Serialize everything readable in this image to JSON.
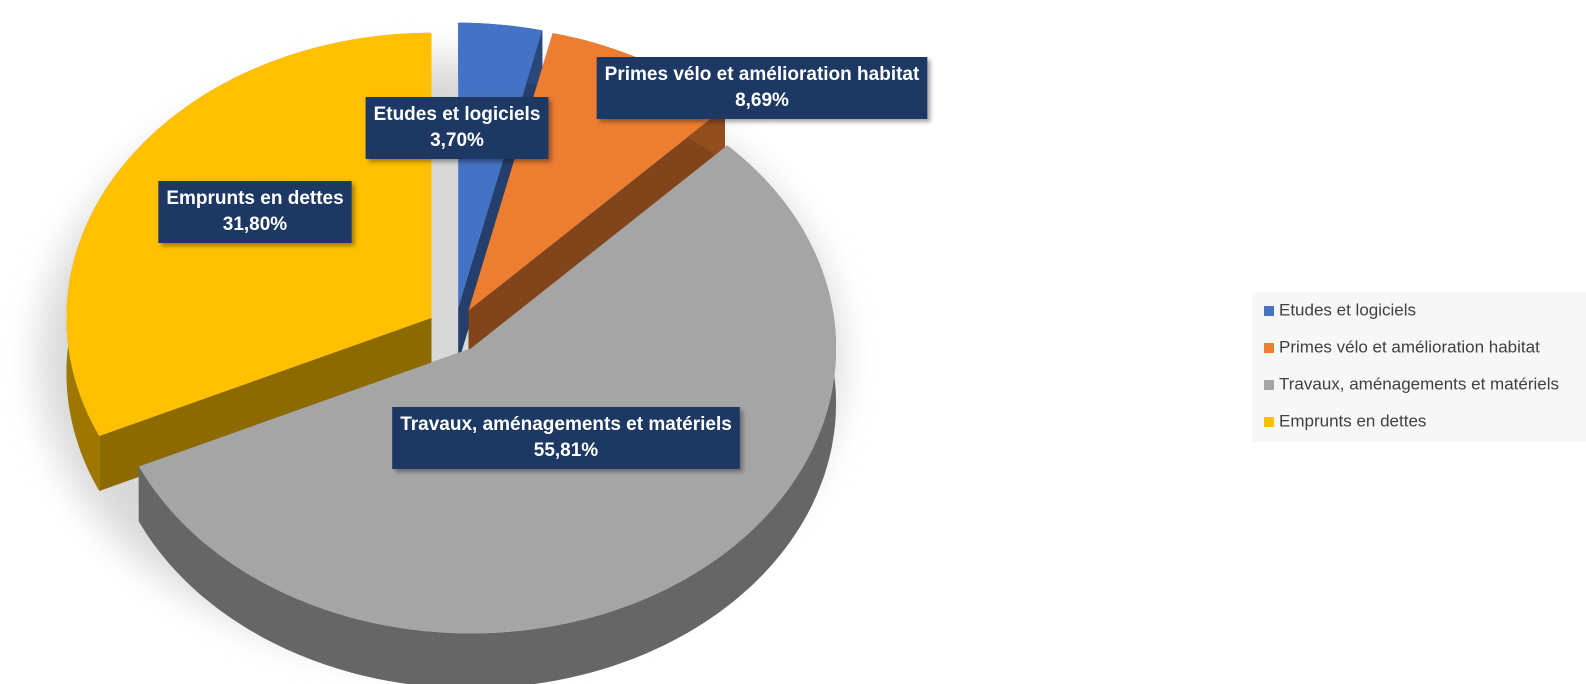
{
  "chart_data": {
    "type": "pie",
    "categories": [
      "Etudes et logiciels",
      "Primes vélo et amélioration habitat",
      "Travaux, aménagements et matériels",
      "Emprunts en dettes"
    ],
    "values": [
      3.7,
      8.69,
      55.81,
      31.8
    ],
    "value_labels": [
      "3,70%",
      "8,69%",
      "55,81%",
      "31,80%"
    ],
    "colors": [
      "#4472c4",
      "#ed7d31",
      "#a5a5a5",
      "#ffc000"
    ],
    "legend": "right"
  }
}
